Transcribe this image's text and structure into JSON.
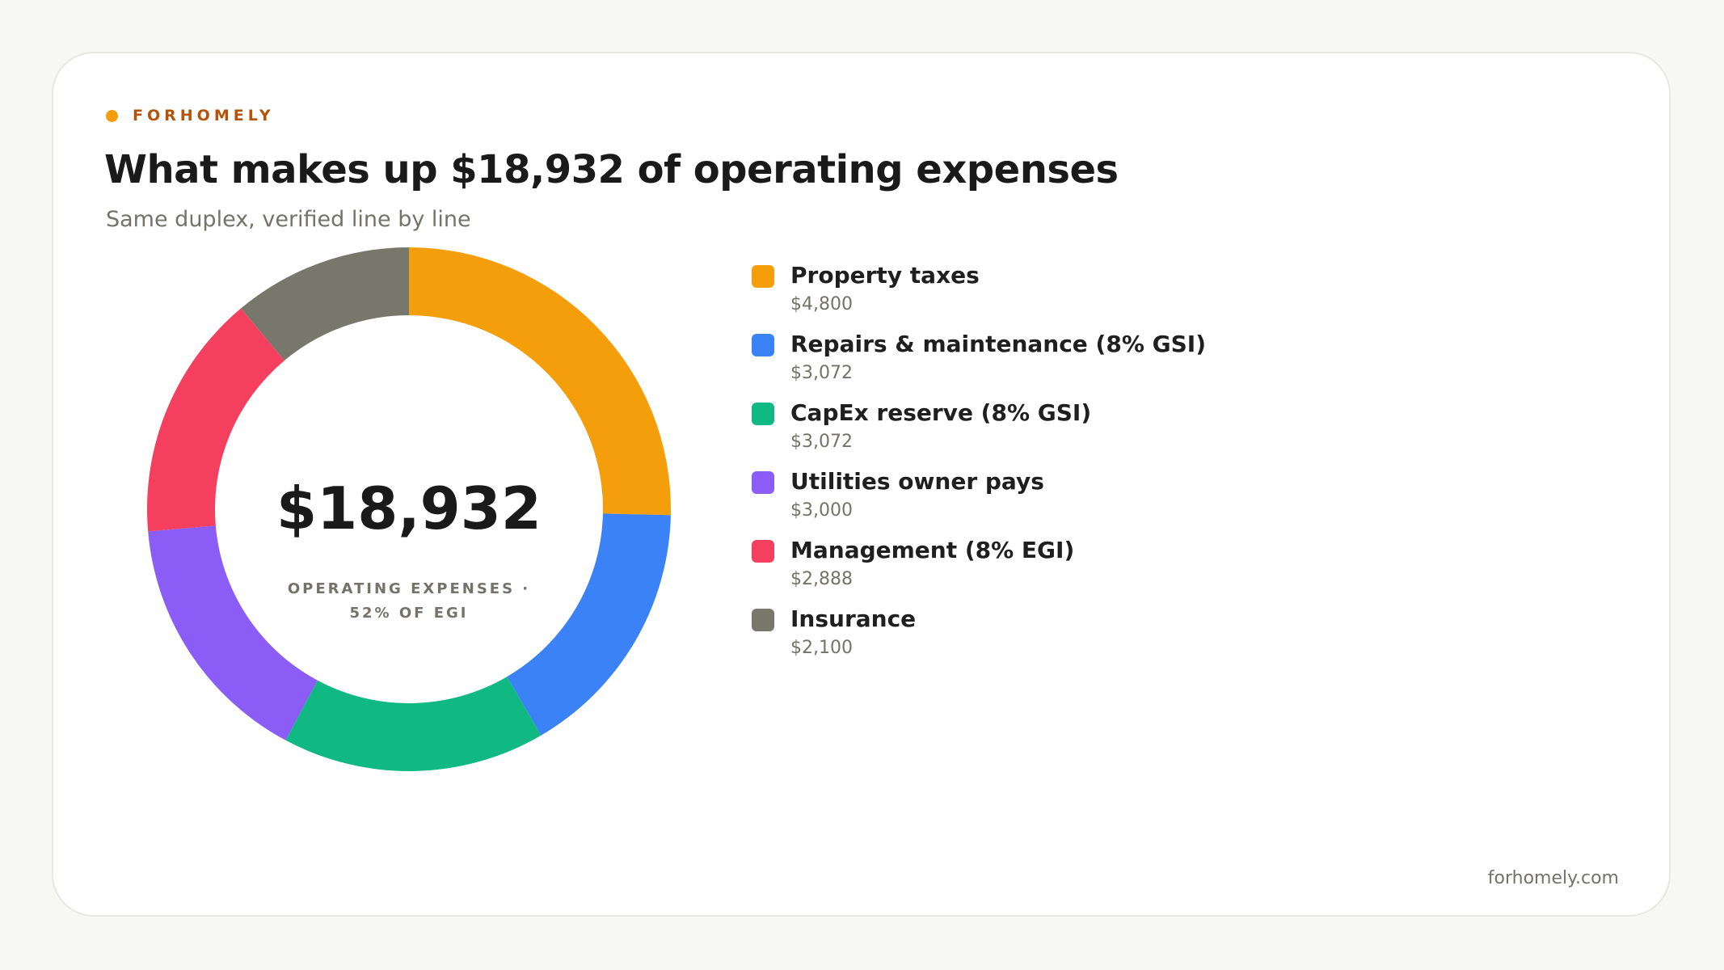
{
  "brand": {
    "name": "FORHOMELY",
    "color": "#f59e0b",
    "text_color": "#b45309"
  },
  "title": "What makes up $18,932 of operating expenses",
  "subtitle": "Same duplex, verified line by line",
  "footer": "forhomely.com",
  "chart_data": {
    "type": "donut",
    "total_label": "$18,932",
    "center_caption": [
      "OPERATING EXPENSES ·",
      "52% OF EGI"
    ],
    "slices": [
      {
        "label": "Property taxes",
        "value": 4800,
        "value_label": "$4,800",
        "color": "#f59e0b"
      },
      {
        "label": "Repairs & maintenance (8% GSI)",
        "value": 3072,
        "value_label": "$3,072",
        "color": "#3b82f6"
      },
      {
        "label": "CapEx reserve (8% GSI)",
        "value": 3072,
        "value_label": "$3,072",
        "color": "#10b981"
      },
      {
        "label": "Utilities owner pays",
        "value": 3000,
        "value_label": "$3,000",
        "color": "#8b5cf6"
      },
      {
        "label": "Management (8% EGI)",
        "value": 2888,
        "value_label": "$2,888",
        "color": "#f43f5e"
      },
      {
        "label": "Insurance",
        "value": 2100,
        "value_label": "$2,100",
        "color": "#78776c"
      }
    ],
    "legend_position": "right"
  }
}
